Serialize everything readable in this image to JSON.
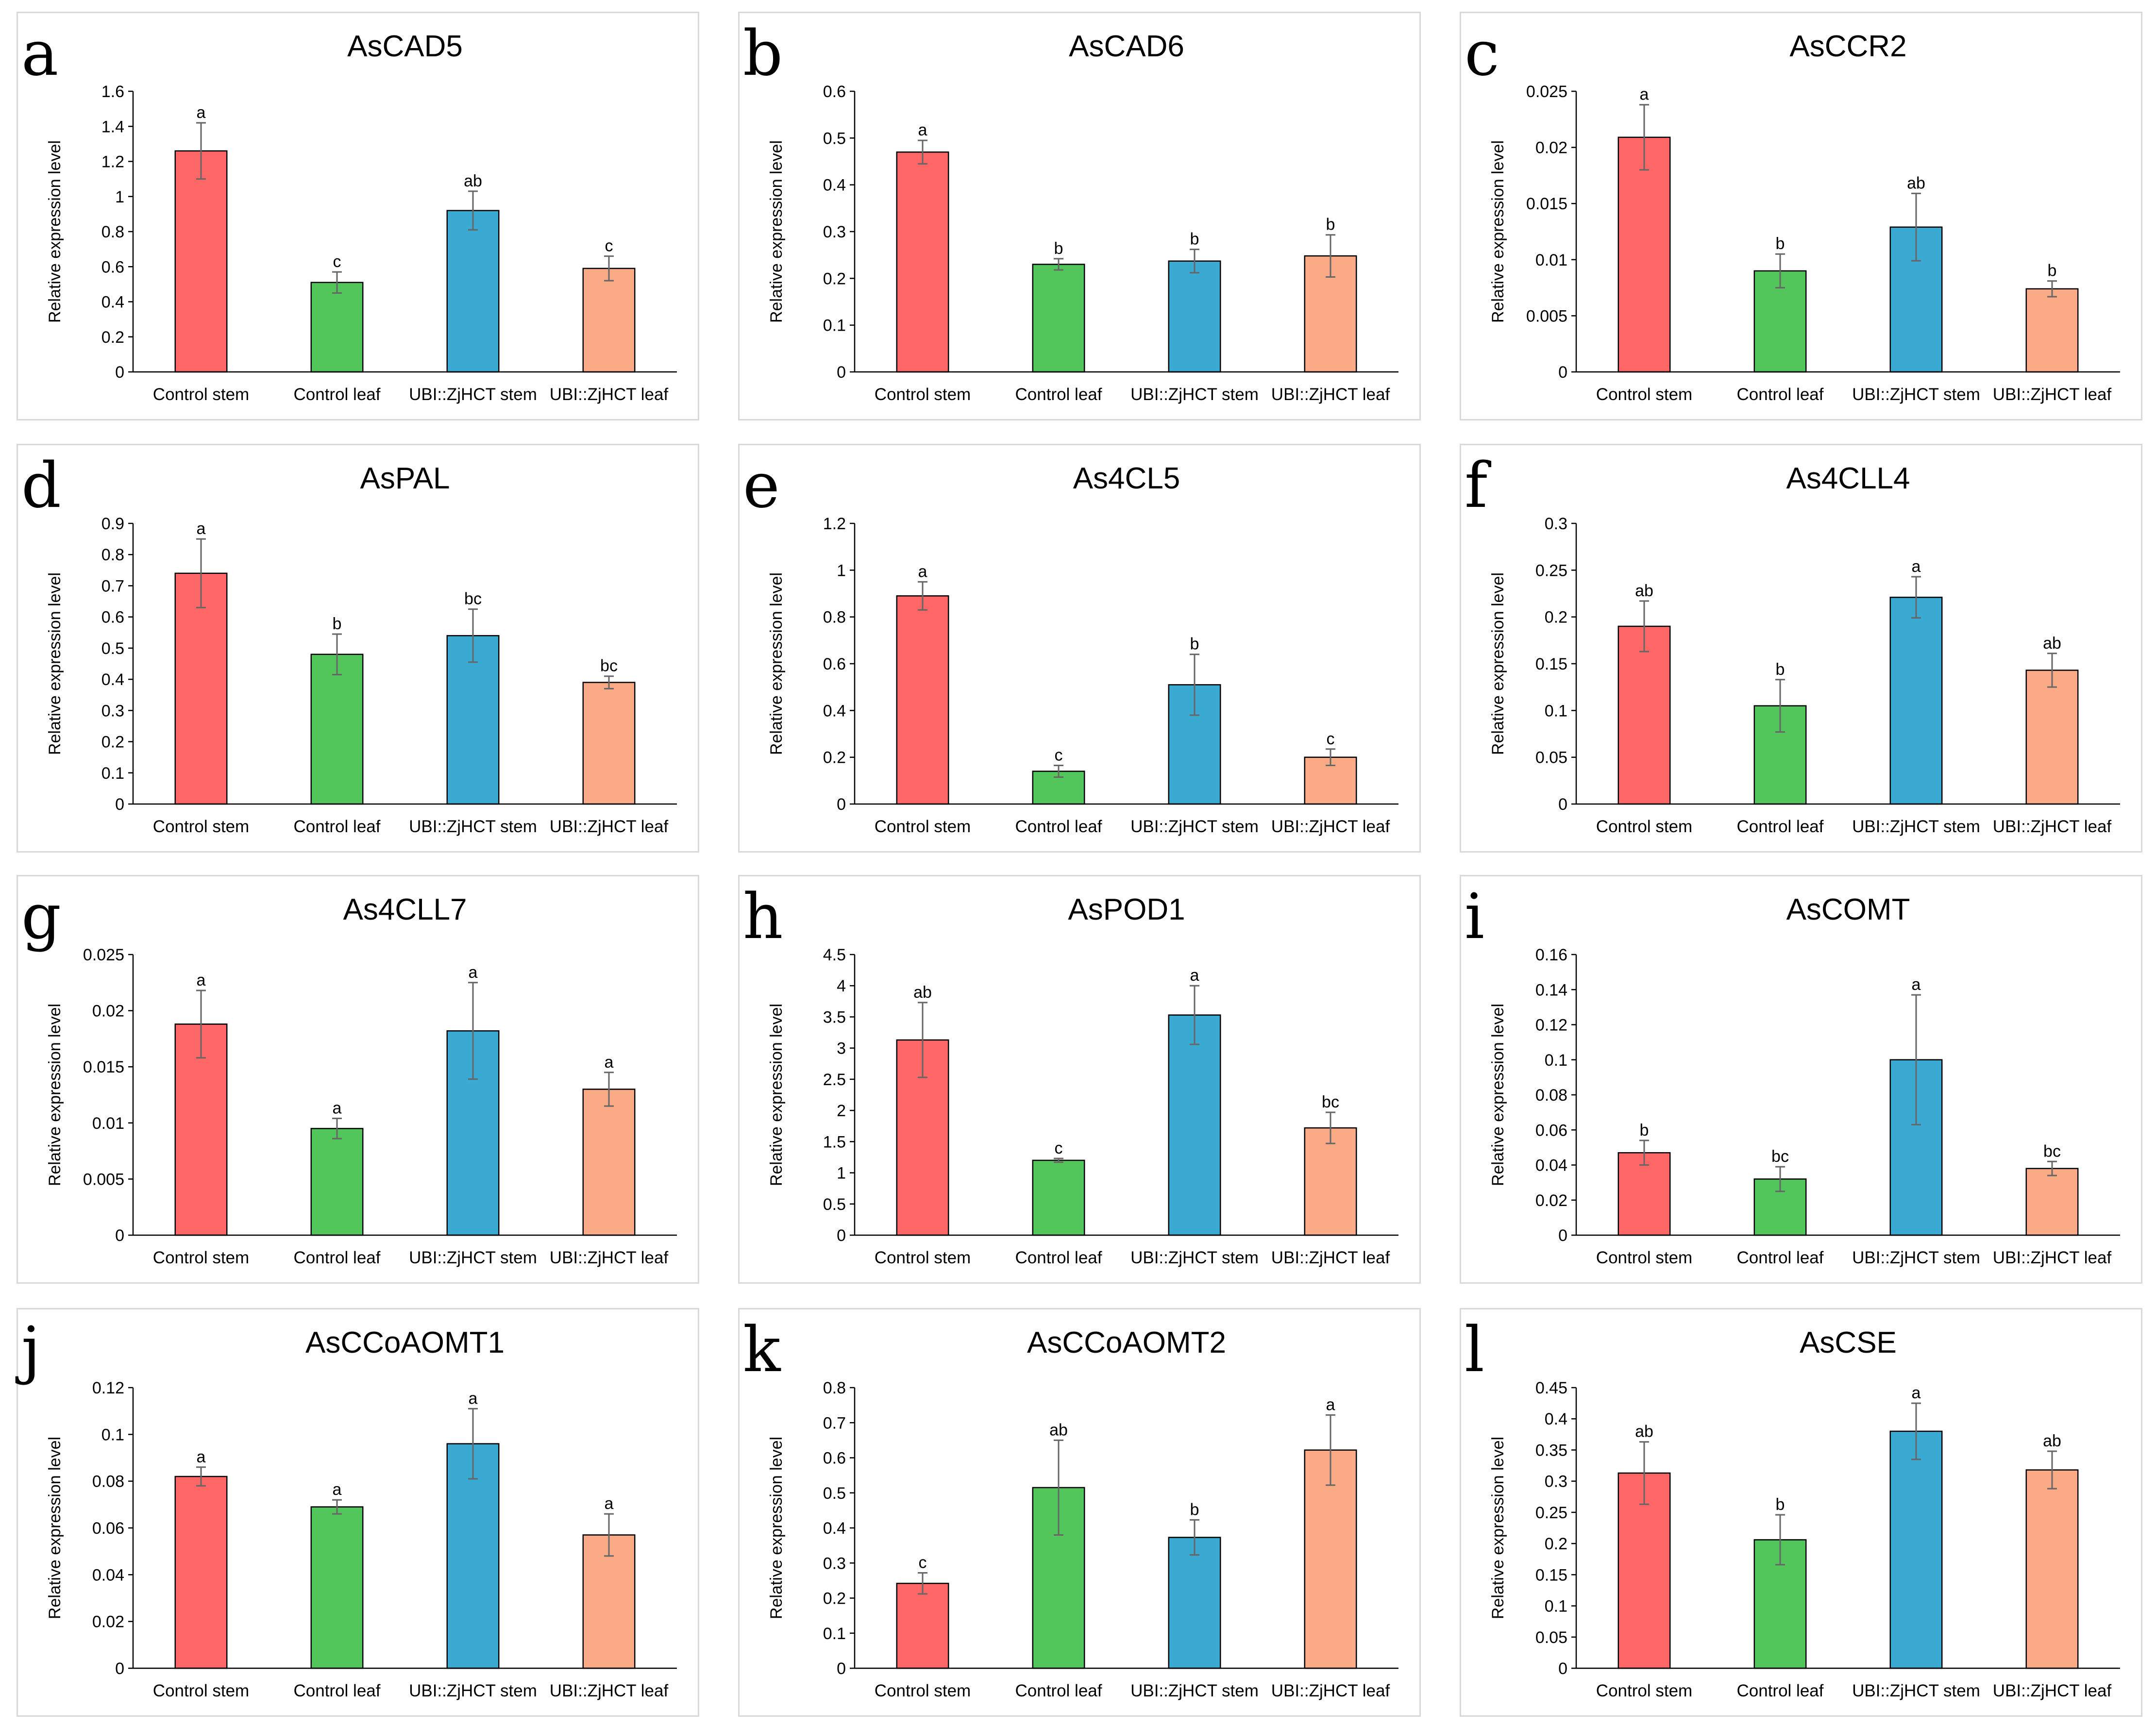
{
  "shared": {
    "categories": [
      "Control stem",
      "Control leaf",
      "UBI::ZjHCT stem",
      "UBI::ZjHCT leaf"
    ],
    "ylabel": "Relative expression level",
    "colors": [
      "#FF6666",
      "#52C65A",
      "#3AAAD2",
      "#FBAA86"
    ]
  },
  "chart_data": [
    {
      "panel": "a",
      "type": "bar",
      "title": "AsCAD5",
      "ylabel": "Relative expression level",
      "categories": [
        "Control stem",
        "Control leaf",
        "UBI::ZjHCT stem",
        "UBI::ZjHCT leaf"
      ],
      "ylim": [
        0,
        1.6
      ],
      "yticks": [
        0,
        0.2,
        0.4,
        0.6,
        0.8,
        1,
        1.2,
        1.4,
        1.6
      ],
      "ytick_labels": [
        "0",
        "0.2",
        "0.4",
        "0.6",
        "0.8",
        "1",
        "1.2",
        "1.4",
        "1.6"
      ],
      "values": [
        1.26,
        0.51,
        0.92,
        0.59
      ],
      "errors": [
        0.16,
        0.06,
        0.11,
        0.07
      ],
      "letters": [
        "a",
        "c",
        "ab",
        "c"
      ]
    },
    {
      "panel": "b",
      "type": "bar",
      "title": "AsCAD6",
      "ylabel": "Relative expression level",
      "categories": [
        "Control stem",
        "Control leaf",
        "UBI::ZjHCT stem",
        "UBI::ZjHCT leaf"
      ],
      "ylim": [
        0,
        0.6
      ],
      "yticks": [
        0,
        0.1,
        0.2,
        0.3,
        0.4,
        0.5,
        0.6
      ],
      "ytick_labels": [
        "0",
        "0.1",
        "0.2",
        "0.3",
        "0.4",
        "0.5",
        "0.6"
      ],
      "values": [
        0.47,
        0.23,
        0.237,
        0.248
      ],
      "errors": [
        0.025,
        0.012,
        0.025,
        0.045
      ],
      "letters": [
        "a",
        "b",
        "b",
        "b"
      ]
    },
    {
      "panel": "c",
      "type": "bar",
      "title": "AsCCR2",
      "ylabel": "Relative expression level",
      "categories": [
        "Control stem",
        "Control leaf",
        "UBI::ZjHCT stem",
        "UBI::ZjHCT leaf"
      ],
      "ylim": [
        0,
        0.025
      ],
      "yticks": [
        0,
        0.005,
        0.01,
        0.015,
        0.02,
        0.025
      ],
      "ytick_labels": [
        "0",
        "0.005",
        "0.01",
        "0.015",
        "0.02",
        "0.025"
      ],
      "values": [
        0.0209,
        0.009,
        0.0129,
        0.0074
      ],
      "errors": [
        0.0029,
        0.0015,
        0.003,
        0.0007
      ],
      "letters": [
        "a",
        "b",
        "ab",
        "b"
      ]
    },
    {
      "panel": "d",
      "type": "bar",
      "title": "AsPAL",
      "ylabel": "Relative expression level",
      "categories": [
        "Control stem",
        "Control leaf",
        "UBI::ZjHCT stem",
        "UBI::ZjHCT leaf"
      ],
      "ylim": [
        0,
        0.9
      ],
      "yticks": [
        0,
        0.1,
        0.2,
        0.3,
        0.4,
        0.5,
        0.6,
        0.7,
        0.8,
        0.9
      ],
      "ytick_labels": [
        "0",
        "0.1",
        "0.2",
        "0.3",
        "0.4",
        "0.5",
        "0.6",
        "0.7",
        "0.8",
        "0.9"
      ],
      "values": [
        0.74,
        0.48,
        0.54,
        0.39
      ],
      "errors": [
        0.11,
        0.065,
        0.085,
        0.02
      ],
      "letters": [
        "a",
        "b",
        "bc",
        "bc"
      ]
    },
    {
      "panel": "e",
      "type": "bar",
      "title": "As4CL5",
      "ylabel": "Relative expression level",
      "categories": [
        "Control stem",
        "Control leaf",
        "UBI::ZjHCT stem",
        "UBI::ZjHCT leaf"
      ],
      "ylim": [
        0,
        1.2
      ],
      "yticks": [
        0,
        0.2,
        0.4,
        0.6,
        0.8,
        1,
        1.2
      ],
      "ytick_labels": [
        "0",
        "0.2",
        "0.4",
        "0.6",
        "0.8",
        "1",
        "1.2"
      ],
      "values": [
        0.89,
        0.14,
        0.51,
        0.2
      ],
      "errors": [
        0.06,
        0.025,
        0.13,
        0.035
      ],
      "letters": [
        "a",
        "c",
        "b",
        "c"
      ]
    },
    {
      "panel": "f",
      "type": "bar",
      "title": "As4CLL4",
      "ylabel": "Relative expression level",
      "categories": [
        "Control stem",
        "Control leaf",
        "UBI::ZjHCT stem",
        "UBI::ZjHCT leaf"
      ],
      "ylim": [
        0,
        0.3
      ],
      "yticks": [
        0,
        0.05,
        0.1,
        0.15,
        0.2,
        0.25,
        0.3
      ],
      "ytick_labels": [
        "0",
        "0.05",
        "0.1",
        "0.15",
        "0.2",
        "0.25",
        "0.3"
      ],
      "values": [
        0.19,
        0.105,
        0.221,
        0.143
      ],
      "errors": [
        0.027,
        0.028,
        0.022,
        0.018
      ],
      "letters": [
        "ab",
        "b",
        "a",
        "ab"
      ]
    },
    {
      "panel": "g",
      "type": "bar",
      "title": "As4CLL7",
      "ylabel": "Relative expression level",
      "categories": [
        "Control stem",
        "Control leaf",
        "UBI::ZjHCT stem",
        "UBI::ZjHCT leaf"
      ],
      "ylim": [
        0,
        0.025
      ],
      "yticks": [
        0,
        0.005,
        0.01,
        0.015,
        0.02,
        0.025
      ],
      "ytick_labels": [
        "0",
        "0.005",
        "0.01",
        "0.015",
        "0.02",
        "0.025"
      ],
      "values": [
        0.0188,
        0.0095,
        0.0182,
        0.013
      ],
      "errors": [
        0.003,
        0.0009,
        0.0043,
        0.0015
      ],
      "letters": [
        "a",
        "a",
        "a",
        "a"
      ]
    },
    {
      "panel": "h",
      "type": "bar",
      "title": "AsPOD1",
      "ylabel": "Relative expression level",
      "categories": [
        "Control stem",
        "Control leaf",
        "UBI::ZjHCT stem",
        "UBI::ZjHCT leaf"
      ],
      "ylim": [
        0,
        4.5
      ],
      "yticks": [
        0,
        0.5,
        1,
        1.5,
        2,
        2.5,
        3,
        3.5,
        4,
        4.5
      ],
      "ytick_labels": [
        "0",
        "0.5",
        "1",
        "1.5",
        "2",
        "2.5",
        "3",
        "3.5",
        "4",
        "4.5"
      ],
      "values": [
        3.13,
        1.2,
        3.53,
        1.72
      ],
      "errors": [
        0.6,
        0.03,
        0.47,
        0.25
      ],
      "letters": [
        "ab",
        "c",
        "a",
        "bc"
      ]
    },
    {
      "panel": "i",
      "type": "bar",
      "title": "AsCOMT",
      "ylabel": "Relative expression level",
      "categories": [
        "Control stem",
        "Control leaf",
        "UBI::ZjHCT stem",
        "UBI::ZjHCT leaf"
      ],
      "ylim": [
        0,
        0.16
      ],
      "yticks": [
        0,
        0.02,
        0.04,
        0.06,
        0.08,
        0.1,
        0.12,
        0.14,
        0.16
      ],
      "ytick_labels": [
        "0",
        "0.02",
        "0.04",
        "0.06",
        "0.08",
        "0.1",
        "0.12",
        "0.14",
        "0.16"
      ],
      "values": [
        0.047,
        0.032,
        0.1,
        0.038
      ],
      "errors": [
        0.007,
        0.007,
        0.037,
        0.004
      ],
      "letters": [
        "b",
        "bc",
        "a",
        "bc"
      ]
    },
    {
      "panel": "j",
      "type": "bar",
      "title": "AsCCoAOMT1",
      "ylabel": "Relative expression level",
      "categories": [
        "Control stem",
        "Control leaf",
        "UBI::ZjHCT stem",
        "UBI::ZjHCT leaf"
      ],
      "ylim": [
        0,
        0.12
      ],
      "yticks": [
        0,
        0.02,
        0.04,
        0.06,
        0.08,
        0.1,
        0.12
      ],
      "ytick_labels": [
        "0",
        "0.02",
        "0.04",
        "0.06",
        "0.08",
        "0.1",
        "0.12"
      ],
      "values": [
        0.082,
        0.069,
        0.096,
        0.057
      ],
      "errors": [
        0.004,
        0.003,
        0.015,
        0.009
      ],
      "letters": [
        "a",
        "a",
        "a",
        "a"
      ]
    },
    {
      "panel": "k",
      "type": "bar",
      "title": "AsCCoAOMT2",
      "ylabel": "Relative expression level",
      "categories": [
        "Control stem",
        "Control leaf",
        "UBI::ZjHCT stem",
        "UBI::ZjHCT leaf"
      ],
      "ylim": [
        0,
        0.8
      ],
      "yticks": [
        0,
        0.1,
        0.2,
        0.3,
        0.4,
        0.5,
        0.6,
        0.7,
        0.8
      ],
      "ytick_labels": [
        "0",
        "0.1",
        "0.2",
        "0.3",
        "0.4",
        "0.5",
        "0.6",
        "0.7",
        "0.8"
      ],
      "values": [
        0.242,
        0.515,
        0.373,
        0.622
      ],
      "errors": [
        0.03,
        0.135,
        0.05,
        0.1
      ],
      "letters": [
        "c",
        "ab",
        "b",
        "a"
      ]
    },
    {
      "panel": "l",
      "type": "bar",
      "title": "AsCSE",
      "ylabel": "Relative expression level",
      "categories": [
        "Control stem",
        "Control leaf",
        "UBI::ZjHCT stem",
        "UBI::ZjHCT leaf"
      ],
      "ylim": [
        0,
        0.45
      ],
      "yticks": [
        0,
        0.05,
        0.1,
        0.15,
        0.2,
        0.25,
        0.3,
        0.35,
        0.4,
        0.45
      ],
      "ytick_labels": [
        "0",
        "0.05",
        "0.1",
        "0.15",
        "0.2",
        "0.25",
        "0.3",
        "0.35",
        "0.4",
        "0.45"
      ],
      "values": [
        0.313,
        0.206,
        0.38,
        0.318
      ],
      "errors": [
        0.05,
        0.04,
        0.045,
        0.03
      ],
      "letters": [
        "ab",
        "b",
        "a",
        "ab"
      ]
    }
  ]
}
